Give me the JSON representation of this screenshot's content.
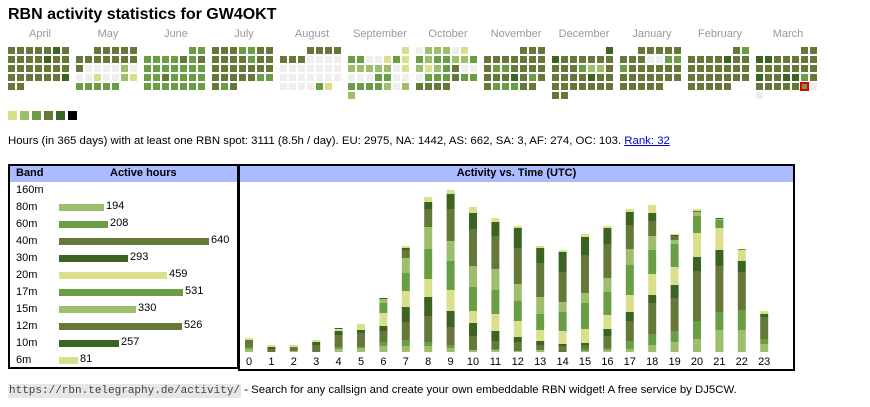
{
  "title": "RBN activity statistics for GW4OKT",
  "colors": {
    "empty": "#eeeeee",
    "level1": "#d8e08a",
    "level2": "#9dbf6b",
    "level3": "#6a9e45",
    "level4": "#66773a",
    "level5": "#3b6423",
    "level6": "#000000",
    "header_bg": "#aabbff",
    "today_outline": "#dd0000"
  },
  "calendar": {
    "legend_levels": [
      1,
      2,
      3,
      4,
      5,
      6
    ],
    "months": [
      {
        "name": "April",
        "rows": [
          [
            4,
            4,
            4,
            4,
            4,
            5,
            4
          ],
          [
            4,
            4,
            4,
            4,
            5,
            4,
            4
          ],
          [
            4,
            4,
            4,
            4,
            4,
            4,
            4
          ],
          [
            4,
            4,
            4,
            4,
            4,
            4,
            5
          ],
          [
            4,
            4,
            -1,
            -1,
            -1,
            -1,
            -1
          ]
        ]
      },
      {
        "name": "May",
        "rows": [
          [
            -1,
            -1,
            4,
            4,
            4,
            4,
            4
          ],
          [
            4,
            4,
            4,
            4,
            4,
            4,
            4
          ],
          [
            4,
            0,
            0,
            0,
            0,
            2,
            0
          ],
          [
            0,
            0,
            1,
            0,
            0,
            2,
            1
          ],
          [
            3,
            3,
            3,
            3,
            3,
            -1,
            -1
          ]
        ]
      },
      {
        "name": "June",
        "rows": [
          [
            -1,
            -1,
            -1,
            -1,
            -1,
            3,
            3
          ],
          [
            3,
            3,
            3,
            3,
            4,
            3,
            4
          ],
          [
            3,
            3,
            3,
            3,
            3,
            3,
            3
          ],
          [
            3,
            3,
            4,
            3,
            3,
            3,
            3
          ],
          [
            3,
            3,
            3,
            3,
            3,
            3,
            3
          ]
        ]
      },
      {
        "name": "July",
        "rows": [
          [
            4,
            4,
            4,
            3,
            3,
            4,
            4
          ],
          [
            4,
            4,
            4,
            4,
            3,
            4,
            4
          ],
          [
            4,
            4,
            4,
            4,
            4,
            4,
            4
          ],
          [
            4,
            4,
            4,
            4,
            4,
            3,
            3
          ],
          [
            4,
            3,
            4,
            -1,
            -1,
            -1,
            -1
          ]
        ]
      },
      {
        "name": "August",
        "rows": [
          [
            -1,
            -1,
            -1,
            4,
            4,
            4,
            4
          ],
          [
            4,
            4,
            4,
            0,
            0,
            0,
            0
          ],
          [
            0,
            0,
            0,
            0,
            0,
            0,
            0
          ],
          [
            0,
            0,
            0,
            0,
            0,
            0,
            0
          ],
          [
            0,
            0,
            0,
            0,
            3,
            1,
            -1
          ]
        ]
      },
      {
        "name": "September",
        "rows": [
          [
            -1,
            -1,
            -1,
            -1,
            -1,
            -1,
            1
          ],
          [
            3,
            3,
            0,
            0,
            1,
            3,
            1
          ],
          [
            2,
            2,
            2,
            2,
            2,
            0,
            1
          ],
          [
            0,
            0,
            0,
            3,
            3,
            0,
            0
          ],
          [
            3,
            3,
            3,
            3,
            2,
            0,
            2
          ],
          [
            2,
            -1,
            -1,
            -1,
            -1,
            -1,
            -1
          ]
        ]
      },
      {
        "name": "October",
        "rows": [
          [
            0,
            2,
            2,
            2,
            0,
            1,
            -1
          ],
          [
            3,
            2,
            3,
            3,
            2,
            2,
            3
          ],
          [
            2,
            1,
            2,
            3,
            4,
            0,
            0
          ],
          [
            0,
            3,
            3,
            3,
            4,
            3,
            3
          ],
          [
            4,
            4,
            4,
            4,
            -1,
            -1,
            -1
          ]
        ]
      },
      {
        "name": "November",
        "rows": [
          [
            -1,
            -1,
            -1,
            -1,
            4,
            4,
            4
          ],
          [
            4,
            4,
            4,
            4,
            4,
            4,
            4
          ],
          [
            4,
            3,
            3,
            4,
            4,
            4,
            4
          ],
          [
            4,
            4,
            4,
            5,
            4,
            3,
            4
          ],
          [
            4,
            3,
            3,
            3,
            4,
            4,
            -1
          ]
        ]
      },
      {
        "name": "December",
        "rows": [
          [
            -1,
            -1,
            -1,
            -1,
            -1,
            -1,
            5
          ],
          [
            5,
            4,
            4,
            4,
            4,
            4,
            4
          ],
          [
            4,
            4,
            4,
            3,
            2,
            2,
            4
          ],
          [
            4,
            4,
            4,
            4,
            5,
            4,
            4
          ],
          [
            4,
            4,
            4,
            4,
            4,
            4,
            4
          ],
          [
            4,
            4,
            -1,
            -1,
            -1,
            -1,
            -1
          ]
        ]
      },
      {
        "name": "January",
        "rows": [
          [
            -1,
            -1,
            4,
            4,
            4,
            4,
            4
          ],
          [
            4,
            4,
            4,
            0,
            0,
            3,
            3
          ],
          [
            3,
            4,
            4,
            4,
            4,
            4,
            4
          ],
          [
            4,
            4,
            4,
            4,
            4,
            4,
            4
          ],
          [
            4,
            4,
            4,
            4,
            4,
            -1,
            -1
          ]
        ]
      },
      {
        "name": "February",
        "rows": [
          [
            -1,
            -1,
            -1,
            -1,
            -1,
            4,
            3
          ],
          [
            4,
            4,
            4,
            4,
            5,
            4,
            4
          ],
          [
            4,
            4,
            4,
            4,
            4,
            4,
            4
          ],
          [
            4,
            4,
            4,
            4,
            4,
            4,
            4
          ],
          [
            4,
            4,
            4,
            4,
            4,
            -1,
            -1
          ]
        ]
      },
      {
        "name": "March",
        "rows": [
          [
            -1,
            -1,
            -1,
            -1,
            -1,
            4,
            4
          ],
          [
            5,
            5,
            4,
            4,
            4,
            4,
            4
          ],
          [
            4,
            4,
            4,
            4,
            4,
            4,
            4
          ],
          [
            5,
            4,
            4,
            5,
            5,
            3,
            4
          ],
          [
            4,
            4,
            4,
            4,
            4,
            "T",
            0
          ],
          [
            0,
            -1,
            -1,
            -1,
            -1,
            -1,
            -1
          ]
        ]
      }
    ]
  },
  "summary": {
    "text": "Hours (in 365 days) with at least one RBN spot: 3111 (8.5h / day). EU: 2975, NA: 1442, AS: 662, SA: 3, AF: 274, OC: 103.",
    "rank_link": "Rank: 32"
  },
  "bands_table": {
    "header_band": "Band",
    "header_hours": "Active hours",
    "rows": [
      {
        "band": "160m",
        "hours": null,
        "hours_label": "",
        "level": 0
      },
      {
        "band": "80m",
        "hours": 194,
        "hours_label": "194",
        "level": 2
      },
      {
        "band": "60m",
        "hours": 208,
        "hours_label": "208",
        "level": 3
      },
      {
        "band": "40m",
        "hours": 640,
        "hours_label": "640",
        "level": 4
      },
      {
        "band": "30m",
        "hours": 293,
        "hours_label": "293",
        "level": 5
      },
      {
        "band": "20m",
        "hours": 459,
        "hours_label": "459",
        "level": 1
      },
      {
        "band": "17m",
        "hours": 531,
        "hours_label": "531",
        "level": 3
      },
      {
        "band": "15m",
        "hours": 330,
        "hours_label": "330",
        "level": 2
      },
      {
        "band": "12m",
        "hours": 526,
        "hours_label": "526",
        "level": 4
      },
      {
        "band": "10m",
        "hours": 257,
        "hours_label": "257",
        "level": 5
      },
      {
        "band": "6m",
        "hours": 81,
        "hours_label": "81",
        "level": 1
      }
    ]
  },
  "chart_data": {
    "type": "bar",
    "stacked": true,
    "title": "Activity vs. Time (UTC)",
    "xlabel": "",
    "ylabel": "",
    "categories": [
      "0",
      "1",
      "2",
      "3",
      "4",
      "5",
      "6",
      "7",
      "8",
      "9",
      "10",
      "11",
      "12",
      "13",
      "14",
      "15",
      "16",
      "17",
      "18",
      "19",
      "20",
      "21",
      "22",
      "23"
    ],
    "ylim": [
      0,
      170
    ],
    "series": [
      {
        "name": "80m",
        "level": 2,
        "values": [
          3,
          0,
          1,
          0,
          3,
          4,
          6,
          6,
          6,
          4,
          2,
          2,
          1,
          2,
          0,
          1,
          2,
          3,
          7,
          10,
          13,
          22,
          22,
          8
        ]
      },
      {
        "name": "60m",
        "level": 3,
        "values": [
          2,
          0,
          0,
          0,
          2,
          1,
          4,
          6,
          4,
          3,
          0,
          1,
          0,
          0,
          0,
          2,
          2,
          8,
          11,
          11,
          18,
          18,
          20,
          5
        ]
      },
      {
        "name": "40m",
        "level": 4,
        "values": [
          7,
          3,
          4,
          7,
          12,
          14,
          11,
          18,
          26,
          18,
          14,
          8,
          9,
          5,
          6,
          4,
          12,
          20,
          31,
          33,
          50,
          46,
          38,
          22
        ]
      },
      {
        "name": "30m",
        "level": 5,
        "values": [
          0,
          2,
          0,
          3,
          4,
          3,
          5,
          15,
          19,
          16,
          13,
          10,
          5,
          4,
          2,
          2,
          7,
          9,
          8,
          13,
          14,
          16,
          11,
          3
        ]
      },
      {
        "name": "20m",
        "level": 1,
        "values": [
          2,
          2,
          2,
          2,
          2,
          6,
          13,
          16,
          18,
          21,
          12,
          17,
          16,
          11,
          13,
          14,
          14,
          17,
          21,
          18,
          24,
          22,
          11,
          3
        ]
      },
      {
        "name": "17m",
        "level": 3,
        "values": [
          0,
          0,
          0,
          0,
          0,
          0,
          10,
          18,
          30,
          29,
          24,
          24,
          20,
          16,
          19,
          26,
          23,
          30,
          24,
          23,
          17,
          8,
          1,
          0
        ]
      },
      {
        "name": "15m",
        "level": 2,
        "values": [
          0,
          0,
          0,
          0,
          0,
          0,
          4,
          15,
          22,
          20,
          21,
          21,
          17,
          17,
          10,
          10,
          14,
          16,
          14,
          4,
          4,
          1,
          0,
          0
        ]
      },
      {
        "name": "12m",
        "level": 4,
        "values": [
          0,
          0,
          0,
          0,
          0,
          0,
          0,
          8,
          18,
          32,
          37,
          33,
          36,
          34,
          30,
          38,
          34,
          24,
          15,
          4,
          1,
          0,
          0,
          0
        ]
      },
      {
        "name": "10m",
        "level": 5,
        "values": [
          0,
          0,
          0,
          0,
          1,
          0,
          1,
          2,
          7,
          15,
          16,
          14,
          20,
          15,
          20,
          18,
          16,
          13,
          8,
          1,
          0,
          1,
          0,
          0
        ]
      },
      {
        "name": "6m",
        "level": 1,
        "values": [
          0,
          0,
          0,
          0,
          0,
          0,
          0,
          2,
          5,
          4,
          6,
          4,
          2,
          2,
          2,
          3,
          2,
          3,
          8,
          1,
          2,
          0,
          0,
          0
        ]
      }
    ]
  },
  "footer": {
    "url": "https://rbn.telegraphy.de/activity/",
    "text": " - Search for any callsign and create your own embeddable RBN widget! A free service by DJ5CW."
  }
}
